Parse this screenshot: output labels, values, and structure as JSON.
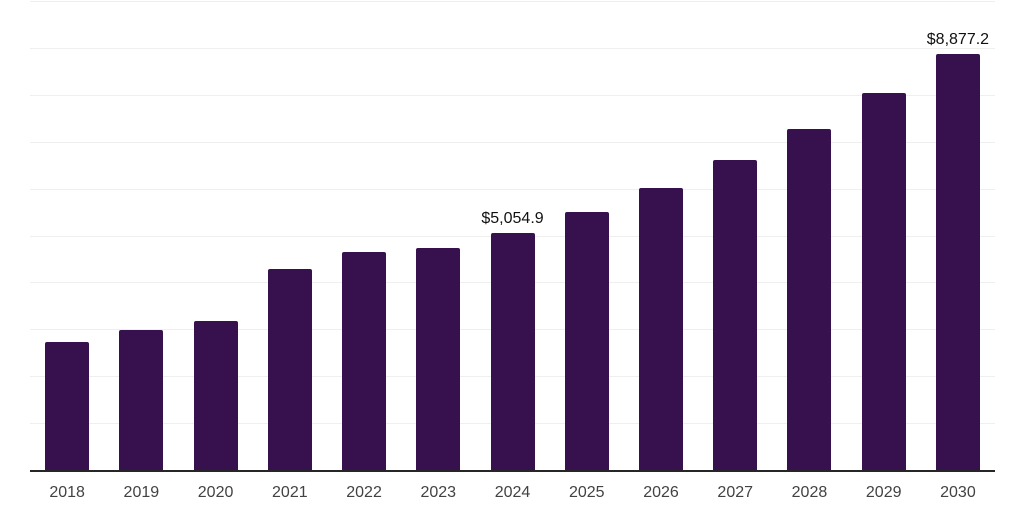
{
  "chart_data": {
    "type": "bar",
    "title": "",
    "xlabel": "",
    "ylabel": "",
    "categories": [
      "2018",
      "2019",
      "2020",
      "2021",
      "2022",
      "2023",
      "2024",
      "2025",
      "2026",
      "2027",
      "2028",
      "2029",
      "2030"
    ],
    "values": [
      2720,
      2975,
      3175,
      4280,
      4655,
      4740,
      5054.9,
      5505,
      6005,
      6610,
      7265,
      8030,
      8877.2
    ],
    "data_labels": {
      "2024": "$5,054.9",
      "2030": "$8,877.2"
    },
    "ylim": [
      0,
      10000
    ],
    "gridline_step": 1000,
    "grid": "horizontal",
    "legend_position": "none",
    "colors": {
      "bar": "#36114E",
      "axis_line": "#262626",
      "gridline": "#efefef",
      "tick_label": "#424242",
      "data_label": "#111111"
    }
  }
}
